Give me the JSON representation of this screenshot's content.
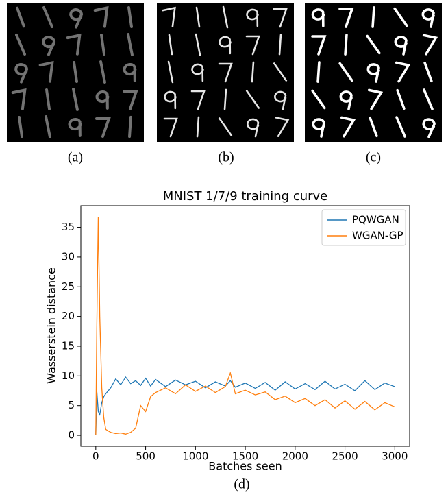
{
  "captions": [
    "(a)",
    "(b)",
    "(c)",
    "(d)"
  ],
  "chart_data": {
    "type": "line",
    "title": "MNIST 1/7/9 training curve",
    "x_label": "Batches seen",
    "y_label": "Wasserstein distance",
    "x": [
      0,
      10,
      25,
      40,
      60,
      80,
      100,
      150,
      200,
      250,
      300,
      350,
      400,
      450,
      500,
      550,
      600,
      700,
      800,
      900,
      1000,
      1100,
      1200,
      1300,
      1350,
      1400,
      1500,
      1600,
      1700,
      1800,
      1900,
      2000,
      2100,
      2200,
      2300,
      2400,
      2500,
      2600,
      2700,
      2800,
      2900,
      2999
    ],
    "series": [
      {
        "name": "PQWGAN",
        "color": "#1f77b4",
        "values": [
          0,
          7.5,
          4,
          3.5,
          5.5,
          6.5,
          7,
          8,
          9.5,
          8.5,
          9.8,
          8.7,
          9.2,
          8.4,
          9.6,
          8.3,
          9.4,
          8.2,
          9.3,
          8.5,
          9.1,
          8.0,
          9.0,
          8.3,
          9.2,
          8.1,
          8.8,
          7.9,
          8.9,
          7.6,
          9.0,
          7.8,
          8.7,
          7.7,
          9.1,
          7.8,
          8.6,
          7.5,
          9.2,
          7.7,
          8.8,
          8.2
        ]
      },
      {
        "name": "WGAN-GP",
        "color": "#ff7f0e",
        "values": [
          0,
          18,
          36.8,
          20,
          8,
          3,
          1,
          0.5,
          0.3,
          0.4,
          0.2,
          0.5,
          1.2,
          5,
          4,
          6.5,
          7.2,
          8,
          7,
          8.5,
          7.4,
          8.3,
          7.2,
          8.2,
          10.5,
          7,
          7.6,
          6.8,
          7.3,
          6,
          6.6,
          5.5,
          6.2,
          5,
          6,
          4.6,
          5.8,
          4.4,
          5.7,
          4.3,
          5.5,
          4.8
        ]
      }
    ],
    "xlim": [
      -150,
      3149
    ],
    "xticks": [
      0,
      500,
      1000,
      1500,
      2000,
      2500,
      3000
    ],
    "ylim": [
      -1.84,
      38.64
    ],
    "yticks": [
      0,
      5,
      10,
      15,
      20,
      25,
      30,
      35
    ],
    "grid": false,
    "legend": "upper right"
  }
}
